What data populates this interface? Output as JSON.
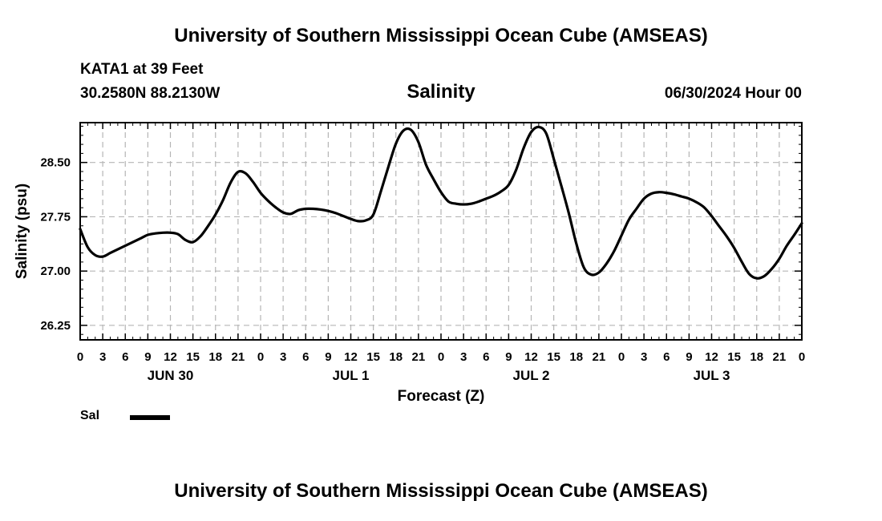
{
  "header": {
    "title": "University of Southern Mississippi Ocean Cube (AMSEAS)",
    "station": "KATA1 at 39 Feet",
    "coords": "30.2580N  88.2130W",
    "variable": "Salinity",
    "date": "06/30/2024 Hour 00"
  },
  "footer": {
    "title": "University of Southern Mississippi Ocean Cube (AMSEAS)"
  },
  "legend": {
    "label": "Sal",
    "color": "#000000"
  },
  "chart_data": {
    "type": "line",
    "title": "Salinity",
    "xlabel": "Forecast (Z)",
    "ylabel": "Salinity (psu)",
    "xlim": [
      0,
      96
    ],
    "ylim": [
      26.05,
      29.05
    ],
    "grid": true,
    "x_ticks": [
      0,
      3,
      6,
      9,
      12,
      15,
      18,
      21,
      24,
      27,
      30,
      33,
      36,
      39,
      42,
      45,
      48,
      51,
      54,
      57,
      60,
      63,
      66,
      69,
      72,
      75,
      78,
      81,
      84,
      87,
      90,
      93,
      96
    ],
    "x_tick_labels": [
      "0",
      "3",
      "6",
      "9",
      "12",
      "15",
      "18",
      "21",
      "0",
      "3",
      "6",
      "9",
      "12",
      "15",
      "18",
      "21",
      "0",
      "3",
      "6",
      "9",
      "12",
      "15",
      "18",
      "21",
      "0",
      "3",
      "6",
      "9",
      "12",
      "15",
      "18",
      "21",
      "0"
    ],
    "day_labels": [
      {
        "x": 12,
        "label": "JUN 30"
      },
      {
        "x": 36,
        "label": "JUL 1"
      },
      {
        "x": 60,
        "label": "JUL 2"
      },
      {
        "x": 84,
        "label": "JUL 3"
      }
    ],
    "y_ticks": [
      26.25,
      27.0,
      27.75,
      28.5
    ],
    "y_tick_labels": [
      "26.25",
      "27.00",
      "27.75",
      "28.50"
    ],
    "series": [
      {
        "name": "Sal",
        "color": "#000000",
        "x": [
          0,
          1,
          2,
          3,
          4,
          5,
          6,
          7,
          8,
          9,
          10,
          11,
          12,
          13,
          14,
          15,
          16,
          17,
          18,
          19,
          20,
          21,
          22,
          23,
          24,
          25,
          26,
          27,
          28,
          29,
          30,
          31,
          32,
          33,
          34,
          35,
          36,
          37,
          38,
          39,
          40,
          41,
          42,
          43,
          44,
          45,
          46,
          47,
          48,
          49,
          50,
          51,
          52,
          53,
          54,
          55,
          56,
          57,
          58,
          59,
          60,
          61,
          62,
          63,
          64,
          65,
          66,
          67,
          68,
          69,
          70,
          71,
          72,
          73,
          74,
          75,
          76,
          77,
          78,
          79,
          80,
          81,
          82,
          83,
          84,
          85,
          86,
          87,
          88,
          89,
          90,
          91,
          92,
          93,
          94,
          95,
          96
        ],
        "values": [
          27.58,
          27.33,
          27.22,
          27.2,
          27.25,
          27.3,
          27.35,
          27.4,
          27.45,
          27.5,
          27.52,
          27.53,
          27.53,
          27.51,
          27.43,
          27.4,
          27.48,
          27.62,
          27.78,
          27.98,
          28.22,
          28.37,
          28.35,
          28.23,
          28.08,
          27.97,
          27.88,
          27.81,
          27.79,
          27.84,
          27.86,
          27.86,
          27.85,
          27.83,
          27.8,
          27.76,
          27.72,
          27.69,
          27.7,
          27.78,
          28.1,
          28.44,
          28.76,
          28.94,
          28.95,
          28.78,
          28.47,
          28.27,
          28.09,
          27.96,
          27.93,
          27.92,
          27.93,
          27.96,
          28.0,
          28.04,
          28.1,
          28.19,
          28.4,
          28.7,
          28.92,
          28.99,
          28.9,
          28.55,
          28.18,
          27.8,
          27.38,
          27.05,
          26.95,
          26.98,
          27.1,
          27.27,
          27.49,
          27.71,
          27.86,
          28.0,
          28.07,
          28.09,
          28.08,
          28.06,
          28.03,
          28.0,
          27.95,
          27.88,
          27.76,
          27.62,
          27.48,
          27.32,
          27.13,
          26.96,
          26.9,
          26.93,
          27.03,
          27.17,
          27.35,
          27.5,
          27.66
        ]
      }
    ]
  }
}
